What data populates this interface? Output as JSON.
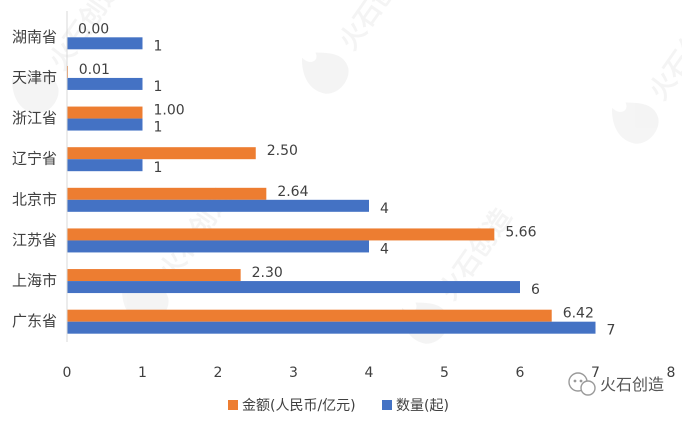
{
  "watermark": {
    "brand": "火石创造"
  },
  "chart_data": {
    "type": "bar",
    "orientation": "horizontal",
    "categories": [
      "湖南省",
      "天津市",
      "浙江省",
      "辽宁省",
      "北京市",
      "江苏省",
      "上海市",
      "广东省"
    ],
    "series": [
      {
        "name": "金额(人民币/亿元)",
        "color": "#ED7D31",
        "values": [
          0.0,
          0.01,
          1.0,
          2.5,
          2.64,
          5.66,
          2.3,
          6.42
        ],
        "labels": [
          "0.00",
          "0.01",
          "1.00",
          "2.50",
          "2.64",
          "5.66",
          "2.30",
          "6.42"
        ]
      },
      {
        "name": "数量(起)",
        "color": "#4472C4",
        "values": [
          1,
          1,
          1,
          1,
          4,
          4,
          6,
          7
        ],
        "labels": [
          "1",
          "1",
          "1",
          "1",
          "4",
          "4",
          "6",
          "7"
        ]
      }
    ],
    "x_ticks": [
      "0",
      "1",
      "2",
      "3",
      "4",
      "5",
      "6",
      "7",
      "8"
    ],
    "xlim": [
      0,
      8
    ],
    "grid": false,
    "legend_position": "bottom",
    "axis_color": "#D9D9D9",
    "text_color": "#404040"
  }
}
